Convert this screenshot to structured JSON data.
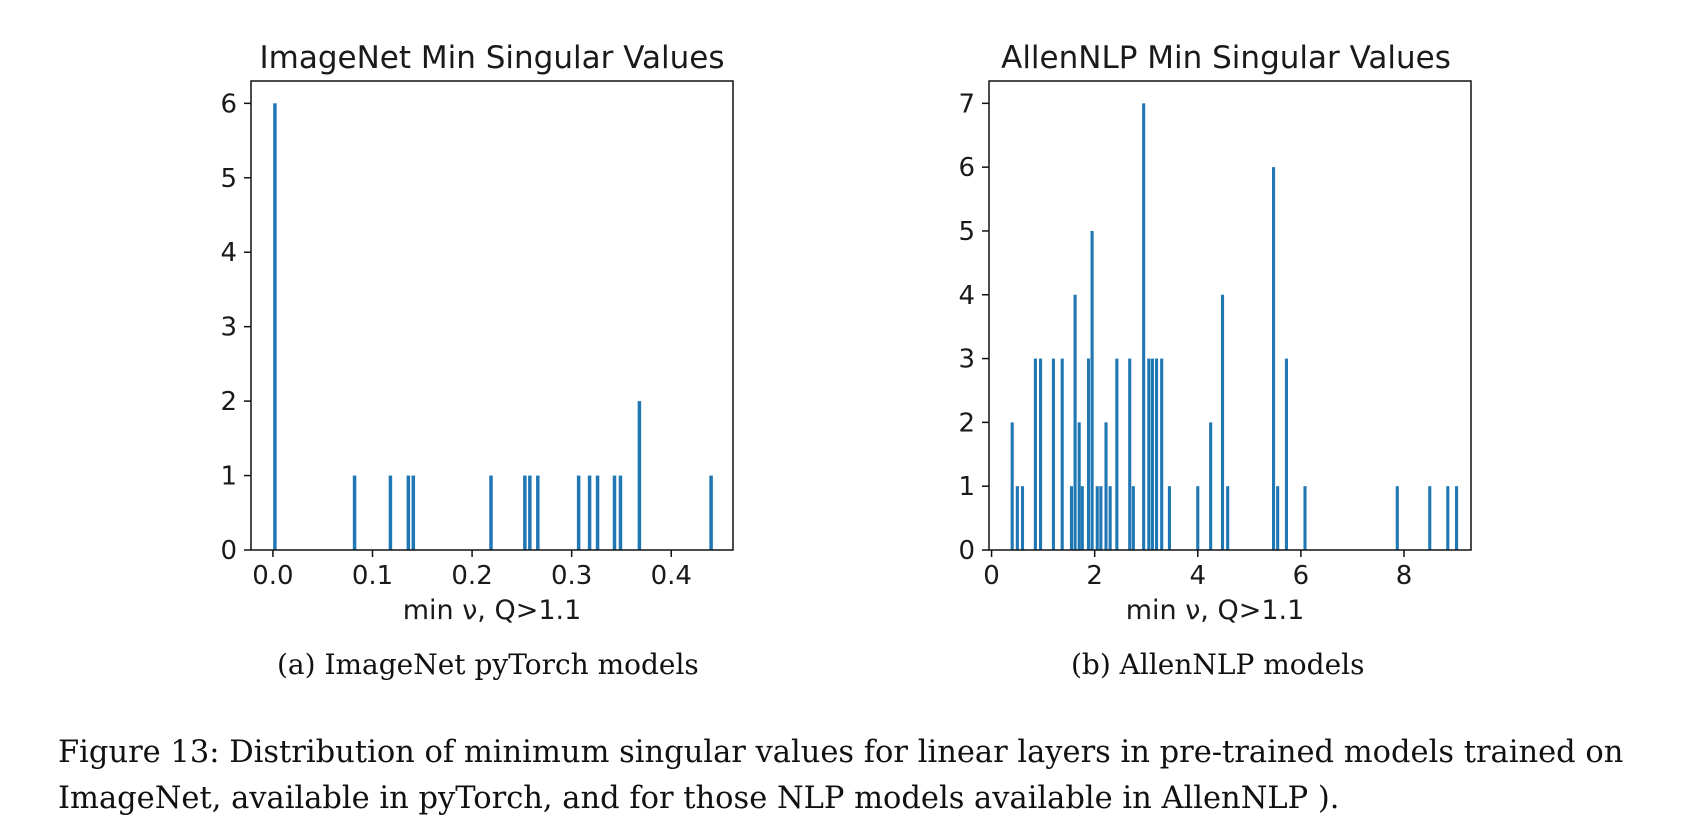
{
  "chart_data": [
    {
      "type": "bar",
      "title": "ImageNet Min Singular Values",
      "xlabel": "min ν, Q>1.1",
      "ylabel": "",
      "xlim": [
        -0.022,
        0.462
      ],
      "ylim": [
        0,
        6.3
      ],
      "xticks": [
        0.0,
        0.1,
        0.2,
        0.3,
        0.4
      ],
      "xtick_labels": [
        "0.0",
        "0.1",
        "0.2",
        "0.3",
        "0.4"
      ],
      "yticks": [
        0,
        1,
        2,
        3,
        4,
        5,
        6
      ],
      "ytick_labels": [
        "0",
        "1",
        "2",
        "3",
        "4",
        "5",
        "6"
      ],
      "bar_width": 0.0035,
      "color": "#1f77b4",
      "x": [
        0.002,
        0.082,
        0.118,
        0.136,
        0.141,
        0.219,
        0.253,
        0.258,
        0.266,
        0.307,
        0.318,
        0.326,
        0.343,
        0.349,
        0.368,
        0.44
      ],
      "values": [
        6,
        1,
        1,
        1,
        1,
        1,
        1,
        1,
        1,
        1,
        1,
        1,
        1,
        1,
        2,
        1
      ]
    },
    {
      "type": "bar",
      "title": "AllenNLP Min Singular Values",
      "xlabel": "min ν, Q>1.1",
      "ylabel": "",
      "xlim": [
        -0.05,
        9.3
      ],
      "ylim": [
        0,
        7.35
      ],
      "xticks": [
        0,
        2,
        4,
        6,
        8
      ],
      "xtick_labels": [
        "0",
        "2",
        "4",
        "6",
        "8"
      ],
      "yticks": [
        0,
        1,
        2,
        3,
        4,
        5,
        6,
        7
      ],
      "ytick_labels": [
        "0",
        "1",
        "2",
        "3",
        "4",
        "5",
        "6",
        "7"
      ],
      "bar_width": 0.06,
      "color": "#1f77b4",
      "x": [
        0.4,
        0.5,
        0.6,
        0.85,
        0.95,
        1.2,
        1.37,
        1.55,
        1.62,
        1.7,
        1.76,
        1.88,
        1.95,
        2.05,
        2.12,
        2.22,
        2.3,
        2.43,
        2.68,
        2.75,
        2.95,
        3.05,
        3.12,
        3.2,
        3.3,
        3.45,
        4.0,
        4.25,
        4.48,
        4.58,
        5.47,
        5.55,
        5.72,
        6.08,
        7.87,
        8.5,
        8.85,
        9.02
      ],
      "values": [
        2,
        1,
        1,
        3,
        3,
        3,
        3,
        1,
        4,
        2,
        1,
        3,
        5,
        1,
        1,
        2,
        1,
        3,
        3,
        1,
        7,
        3,
        3,
        3,
        3,
        1,
        1,
        2,
        4,
        1,
        6,
        1,
        3,
        1,
        1,
        1,
        1,
        1
      ]
    }
  ],
  "captions": {
    "a": "(a) ImageNet pyTorch models",
    "b": "(b) AllenNLP models",
    "figure": "Figure 13: Distribution of minimum singular values for linear layers in pre-trained models trained on ImageNet, available in pyTorch, and for those NLP models available in AllenNLP )."
  }
}
